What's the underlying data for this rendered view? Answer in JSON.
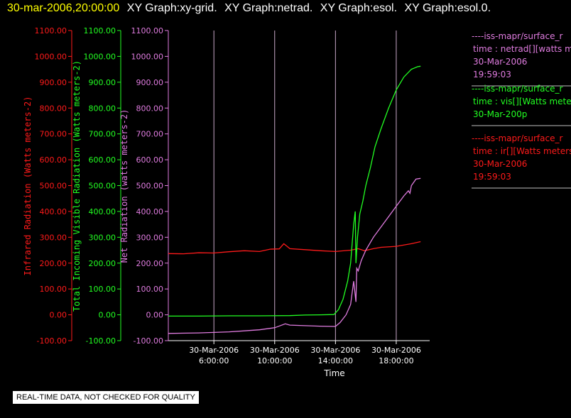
{
  "header": {
    "datetime": "30-mar-2006,20:00:00",
    "graphs": [
      "XY Graph:xy-grid.",
      "XY Graph:netrad.",
      "XY Graph:esol.",
      "XY Graph:esol.0."
    ]
  },
  "notice": "REAL-TIME DATA, NOT CHECKED FOR QUALITY",
  "colors": {
    "ir": "#ff1a1a",
    "vis": "#22ff22",
    "net": "#e07ce0",
    "grid": "#c8a8c8",
    "axis": "#ffffff",
    "date": "#ffff00"
  },
  "legend": [
    {
      "lines": [
        "----iss-mapr/surface_r",
        "time : netrad[][watts m",
        "30-Mar-2006",
        "19:59:03"
      ],
      "color": "#e07ce0"
    },
    {
      "lines": [
        "----iss-mapr/surface_r",
        "time : vis[][Watts mete",
        "30-Mar-200p"
      ],
      "color": "#22ff22"
    },
    {
      "lines": [
        "----iss-mapr/surface_r",
        "time : ir[][Watts meters",
        "30-Mar-2006",
        "19:59:03"
      ],
      "color": "#ff1a1a"
    }
  ],
  "chart_data": {
    "type": "line",
    "xlabel": "Time",
    "x_ticks": [
      {
        "h": 6,
        "date": "30-Mar-2006",
        "time": "6:00:00"
      },
      {
        "h": 10,
        "date": "30-Mar-2006",
        "time": "10:00:00"
      },
      {
        "h": 14,
        "date": "30-Mar-2006",
        "time": "14:00:00"
      },
      {
        "h": 18,
        "date": "30-Mar-2006",
        "time": "18:00:00"
      }
    ],
    "xlim": [
      3,
      20.2
    ],
    "ylim": [
      -100,
      1100
    ],
    "y_ticks": [
      "1100.00",
      "1000.00",
      "900.00",
      "800.00",
      "700.00",
      "600.00",
      "500.00",
      "400.00",
      "300.00",
      "200.00",
      "100.00",
      "0.00",
      "-100.00"
    ],
    "y_tick_values": [
      1100,
      1000,
      900,
      800,
      700,
      600,
      500,
      400,
      300,
      200,
      100,
      0,
      -100
    ],
    "axes": [
      {
        "label": "Infrared Radiation (Watts meters-2)",
        "color": "#ff1a1a"
      },
      {
        "label": "Total Incoming Visible Radiation (Watts meters-2)",
        "color": "#22ff22"
      },
      {
        "label": "Net Radiation (watts meters-2)",
        "color": "#e07ce0"
      }
    ],
    "series": [
      {
        "name": "ir",
        "color": "#ff1a1a",
        "x": [
          3,
          4,
          5,
          6,
          7,
          8,
          9,
          9.7,
          10.3,
          10.6,
          11,
          12,
          13,
          14,
          15,
          15.5,
          15.9,
          16.5,
          17,
          18,
          19,
          19.6
        ],
        "y": [
          237,
          236,
          240,
          239,
          244,
          248,
          245,
          254,
          255,
          275,
          256,
          252,
          248,
          245,
          250,
          256,
          248,
          256,
          261,
          265,
          275,
          283
        ]
      },
      {
        "name": "vis",
        "color": "#22ff22",
        "x": [
          3,
          5,
          7,
          9,
          11,
          12,
          13,
          13.9,
          14.2,
          14.5,
          14.8,
          15,
          15.2,
          15.3,
          15.35,
          15.45,
          15.6,
          15.8,
          16,
          16.3,
          16.6,
          17,
          17.5,
          18,
          18.5,
          19,
          19.2,
          19.4,
          19.6
        ],
        "y": [
          -5,
          -5,
          -4,
          -4,
          -3,
          -1,
          0,
          1,
          20,
          60,
          130,
          200,
          350,
          400,
          200,
          300,
          390,
          440,
          500,
          570,
          650,
          720,
          800,
          870,
          920,
          950,
          955,
          960,
          962
        ]
      },
      {
        "name": "net",
        "color": "#e07ce0",
        "x": [
          3,
          5,
          7,
          8,
          9,
          10,
          10.7,
          11,
          12,
          13,
          14,
          14.3,
          14.7,
          15,
          15.2,
          15.35,
          15.4,
          15.5,
          15.7,
          16,
          16.5,
          17,
          17.5,
          18,
          18.5,
          18.8,
          18.9,
          19,
          19.3,
          19.6
        ],
        "y": [
          -72,
          -70,
          -66,
          -62,
          -58,
          -50,
          -35,
          -40,
          -42,
          -44,
          -45,
          -30,
          0,
          40,
          130,
          50,
          180,
          170,
          210,
          250,
          300,
          340,
          380,
          420,
          460,
          480,
          470,
          500,
          525,
          528
        ]
      }
    ]
  }
}
